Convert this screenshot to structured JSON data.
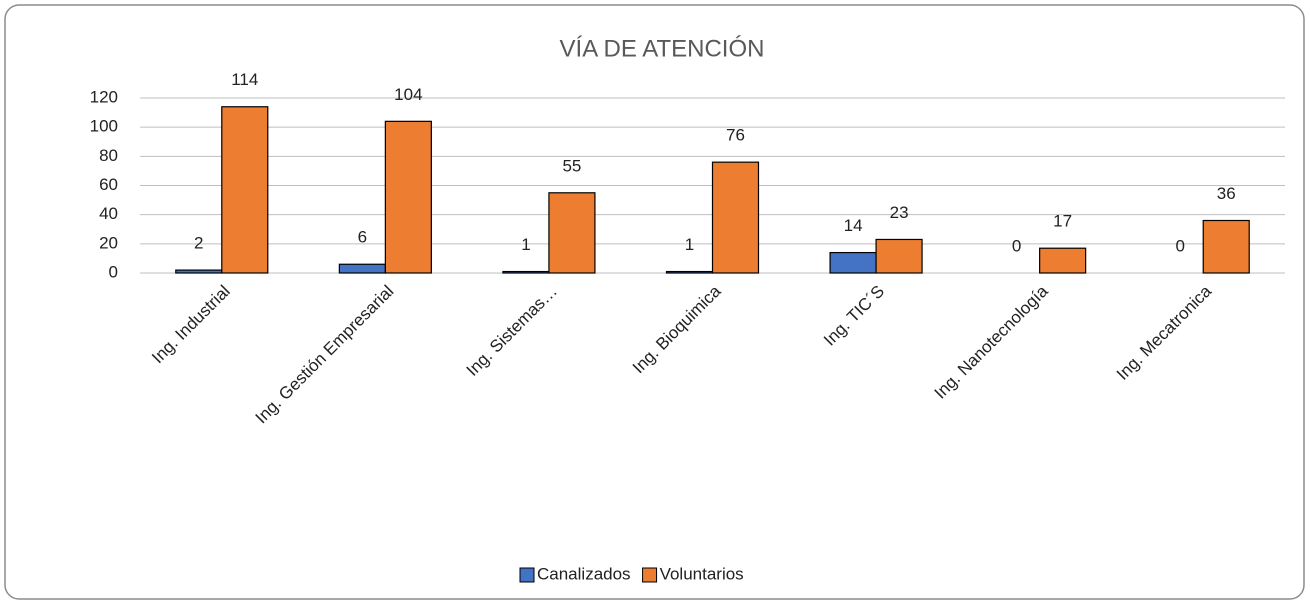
{
  "chart_data": {
    "type": "bar",
    "title": "VÍA DE ATENCIÓN",
    "categories": [
      "Ing. Industrial",
      "Ing. Gestión Empresarial",
      "Ing. Sistemas…",
      "Ing. Bioquimica",
      "Ing. TIC´S",
      "Ing. Nanotecnología",
      "Ing. Mecatronica"
    ],
    "series": [
      {
        "name": "Canalizados",
        "color": "#4472c4",
        "values": [
          2,
          6,
          1,
          1,
          14,
          0,
          0
        ]
      },
      {
        "name": "Voluntarios",
        "color": "#ed7d31",
        "values": [
          114,
          104,
          55,
          76,
          23,
          17,
          36
        ]
      }
    ],
    "ylim": [
      0,
      120
    ],
    "yticks": [
      0,
      20,
      40,
      60,
      80,
      100,
      120
    ],
    "grid": true,
    "legend": "bottom"
  }
}
